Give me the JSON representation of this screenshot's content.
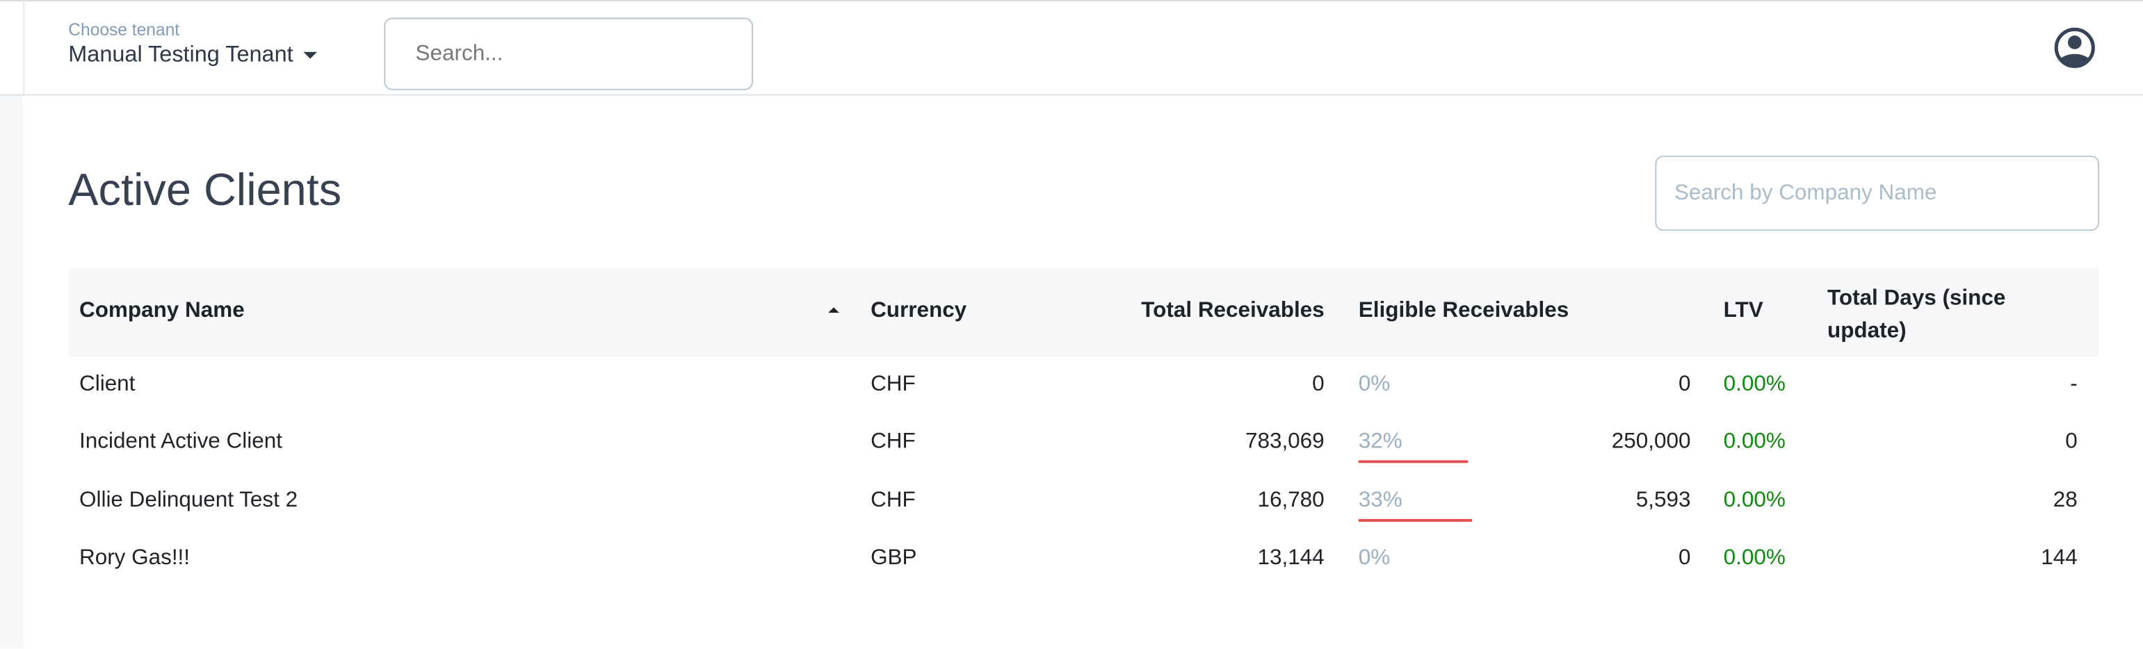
{
  "header": {
    "tenant_label": "Choose tenant",
    "tenant_value": "Manual Testing Tenant",
    "search_placeholder": "Search...",
    "avatar_icon": "user-circle-icon"
  },
  "page": {
    "title": "Active Clients",
    "company_search_placeholder": "Search by Company Name"
  },
  "table": {
    "columns": [
      "Company Name",
      "Currency",
      "Total Receivables",
      "Eligible Receivables",
      "LTV",
      "Total Days (since update)"
    ],
    "sort": {
      "column": "Company Name",
      "direction": "ascending"
    },
    "rows": [
      {
        "company": "Client",
        "currency": "CHF",
        "total": "0",
        "eligible_pct": "0%",
        "eligible_fraction": 0,
        "eligible": "0",
        "ltv": "0.00%",
        "days": "-"
      },
      {
        "company": "Incident Active Client",
        "currency": "CHF",
        "total": "783,069",
        "eligible_pct": "32%",
        "eligible_fraction": 0.32,
        "eligible": "250,000",
        "ltv": "0.00%",
        "days": "0"
      },
      {
        "company": "Ollie Delinquent Test 2",
        "currency": "CHF",
        "total": "16,780",
        "eligible_pct": "33%",
        "eligible_fraction": 0.33,
        "eligible": "5,593",
        "ltv": "0.00%",
        "days": "28"
      },
      {
        "company": "Rory Gas!!!",
        "currency": "GBP",
        "total": "13,144",
        "eligible_pct": "0%",
        "eligible_fraction": 0,
        "eligible": "0",
        "ltv": "0.00%",
        "days": "144"
      }
    ]
  },
  "colors": {
    "eligible_bar": "#e44e4e",
    "ltv": "#0f8a0f",
    "pct": "#9ab0c4",
    "text": "#1f2328"
  }
}
